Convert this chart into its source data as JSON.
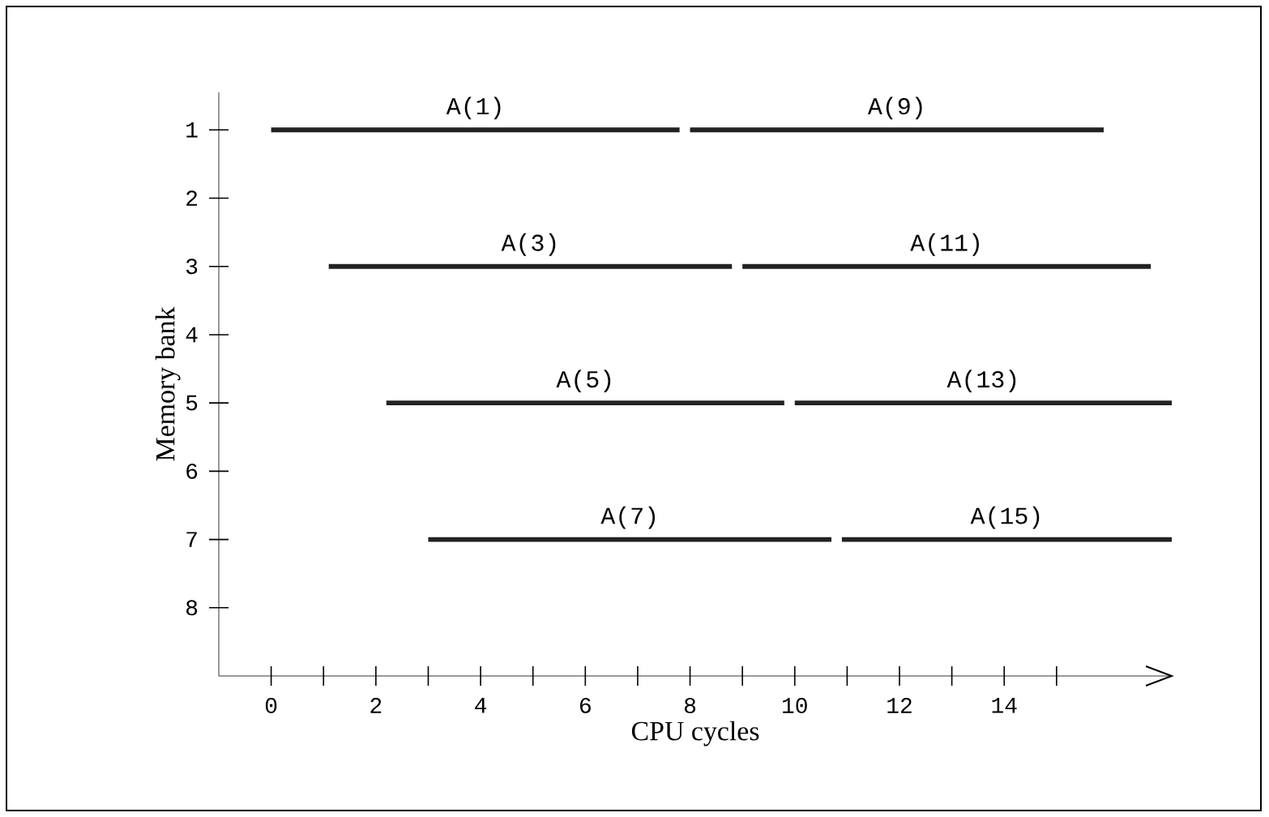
{
  "chart_data": {
    "type": "bar",
    "orientation": "horizontal",
    "xlabel": "CPU cycles",
    "ylabel": "Memory bank",
    "categories": [
      "1",
      "2",
      "3",
      "4",
      "5",
      "6",
      "7",
      "8"
    ],
    "series": [
      {
        "color": "#222222",
        "base": [
          0,
          null,
          1.1,
          null,
          2.2,
          null,
          3.0,
          null
        ],
        "values": [
          7.8,
          null,
          7.7,
          null,
          7.6,
          null,
          7.7,
          null
        ],
        "value_labels": [
          "A(1)",
          null,
          "A(3)",
          null,
          "A(5)",
          null,
          "A(7)",
          null
        ]
      },
      {
        "color": "#222222",
        "base": [
          8.0,
          null,
          9.0,
          null,
          10.0,
          null,
          10.9,
          null
        ],
        "values": [
          7.9,
          null,
          7.8,
          null,
          7.2,
          null,
          6.3,
          null
        ],
        "value_labels": [
          "A(9)",
          null,
          "A(11)",
          null,
          "A(13)",
          null,
          "A(15)",
          null
        ]
      }
    ],
    "xlim": [
      -1,
      17.2
    ],
    "xticks": [
      0,
      {
        "value": 1,
        "label": null
      },
      2,
      {
        "value": 3,
        "label": null
      },
      4,
      {
        "value": 5,
        "label": null
      },
      6,
      {
        "value": 7,
        "label": null
      },
      8,
      {
        "value": 9,
        "label": null
      },
      10,
      {
        "value": 11,
        "label": null
      },
      12,
      {
        "value": 13,
        "label": null
      },
      14,
      {
        "value": 15,
        "label": null
      }
    ],
    "grid": false
  }
}
